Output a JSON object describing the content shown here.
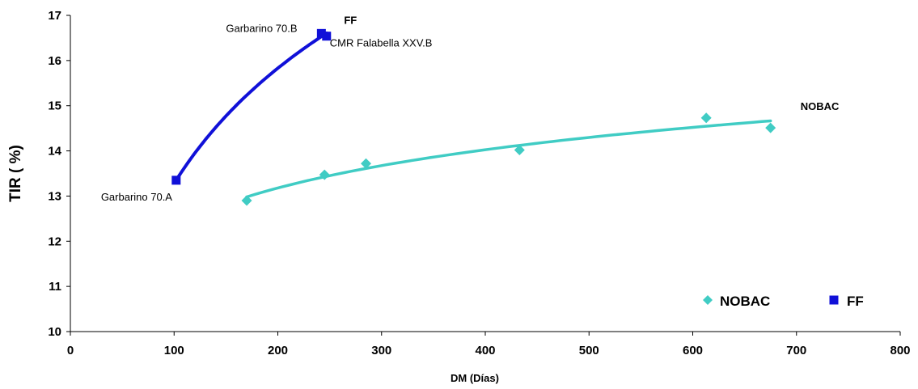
{
  "chart_data": {
    "type": "scatter",
    "xlabel": "DM (Días)",
    "ylabel": "TIR ( %)",
    "xlim": [
      0,
      800
    ],
    "ylim": [
      10,
      17
    ],
    "x_ticks": [
      0,
      100,
      200,
      300,
      400,
      500,
      600,
      700,
      800
    ],
    "y_ticks": [
      10,
      11,
      12,
      13,
      14,
      15,
      16,
      17
    ],
    "grid": false,
    "legend_position": "bottom-right",
    "series": [
      {
        "name": "NOBAC",
        "marker": "diamond",
        "color": "#40CCC4",
        "trendline": "logarithmic",
        "x": [
          170,
          245,
          285,
          433,
          613,
          675
        ],
        "y": [
          12.9,
          13.47,
          13.72,
          14.02,
          14.73,
          14.51
        ]
      },
      {
        "name": "FF",
        "marker": "square",
        "color": "#1010D8",
        "trendline": "logarithmic",
        "x": [
          102,
          242,
          247
        ],
        "y": [
          13.35,
          16.6,
          16.54
        ]
      }
    ],
    "annotations": [
      {
        "text": "Garbarino 70.B",
        "x": 242,
        "y": 16.6
      },
      {
        "text": "FF",
        "x": 242,
        "y": 16.6,
        "bold": true
      },
      {
        "text": "CMR Falabella XXV.B",
        "x": 247,
        "y": 16.54
      },
      {
        "text": "Garbarino 70.A",
        "x": 102,
        "y": 13.35
      },
      {
        "text": "NOBAC",
        "x": 675,
        "y": 14.51,
        "bold": true
      }
    ]
  }
}
